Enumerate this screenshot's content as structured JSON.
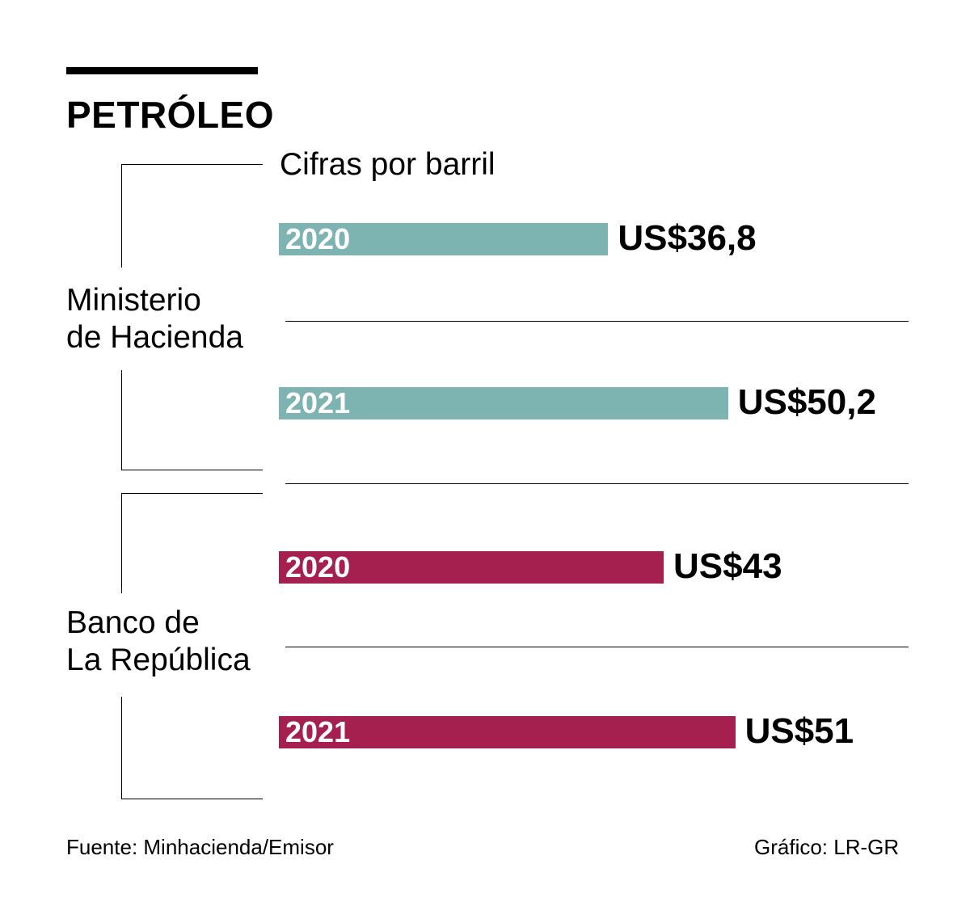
{
  "header": {
    "title": "PETRÓLEO"
  },
  "chart_data": {
    "type": "bar",
    "title": "PETRÓLEO",
    "subtitle": "Cifras por barril",
    "orientation": "horizontal",
    "grid": false,
    "groups": [
      {
        "label_line1": "Ministerio",
        "label_line2": "de Hacienda",
        "color": "#7db3b1",
        "bars": [
          {
            "year": "2020",
            "value": 36.8,
            "value_label": "US$36,8"
          },
          {
            "year": "2021",
            "value": 50.2,
            "value_label": "US$50,2"
          }
        ]
      },
      {
        "label_line1": "Banco de",
        "label_line2": "La República",
        "color": "#a51f4f",
        "bars": [
          {
            "year": "2020",
            "value": 43,
            "value_label": "US$43"
          },
          {
            "year": "2021",
            "value": 51,
            "value_label": "US$51"
          }
        ]
      }
    ]
  },
  "footer": {
    "source": "Fuente: Minhacienda/Emisor",
    "credit": "Gráfico: LR-GR"
  }
}
